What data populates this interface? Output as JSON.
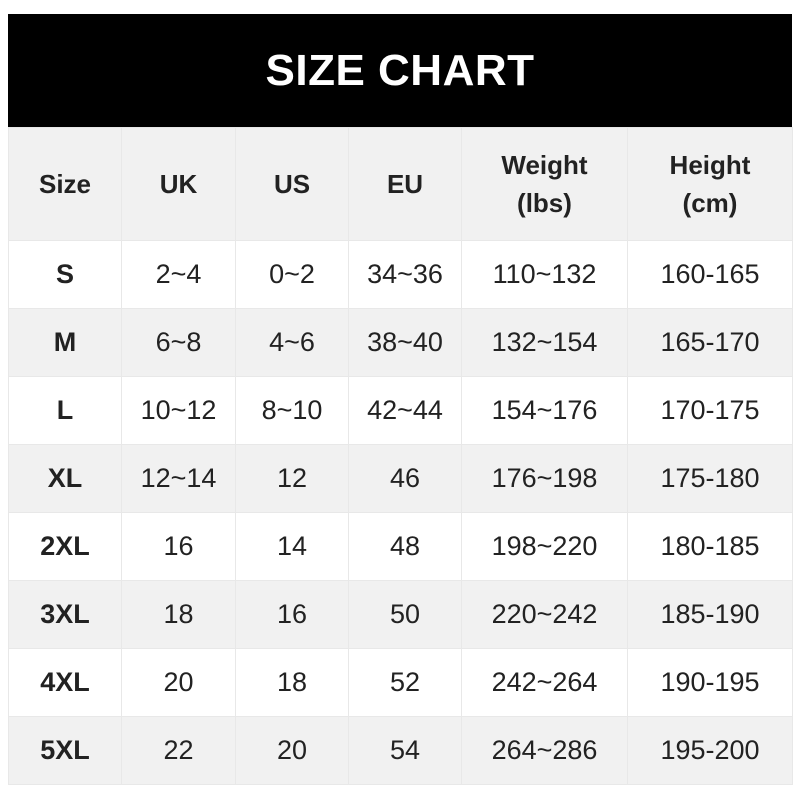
{
  "title": "SIZE CHART",
  "headers": [
    {
      "line1": "Size",
      "line2": ""
    },
    {
      "line1": "UK",
      "line2": ""
    },
    {
      "line1": "US",
      "line2": ""
    },
    {
      "line1": "EU",
      "line2": ""
    },
    {
      "line1": "Weight",
      "line2": "(lbs)"
    },
    {
      "line1": "Height",
      "line2": "(cm)"
    }
  ],
  "rows": [
    [
      "S",
      "2~4",
      "0~2",
      "34~36",
      "110~132",
      "160-165"
    ],
    [
      "M",
      "6~8",
      "4~6",
      "38~40",
      "132~154",
      "165-170"
    ],
    [
      "L",
      "10~12",
      "8~10",
      "42~44",
      "154~176",
      "170-175"
    ],
    [
      "XL",
      "12~14",
      "12",
      "46",
      "176~198",
      "175-180"
    ],
    [
      "2XL",
      "16",
      "14",
      "48",
      "198~220",
      "180-185"
    ],
    [
      "3XL",
      "18",
      "16",
      "50",
      "220~242",
      "185-190"
    ],
    [
      "4XL",
      "20",
      "18",
      "52",
      "242~264",
      "190-195"
    ],
    [
      "5XL",
      "22",
      "20",
      "54",
      "264~286",
      "195-200"
    ]
  ],
  "colors": {
    "title_bg": "#000000",
    "title_text": "#ffffff",
    "stripe": "#f1f1f1",
    "text": "#222222"
  }
}
